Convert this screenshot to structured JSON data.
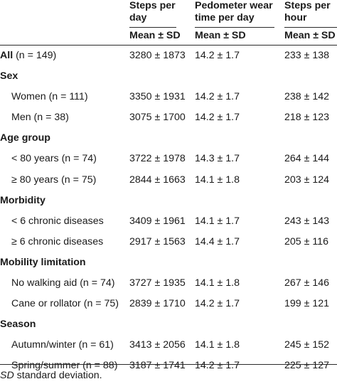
{
  "header": {
    "col1_title_line1": "Steps per",
    "col1_title_line2": "day",
    "col2_title_line1": "Pedometer wear",
    "col2_title_line2": "time per day",
    "col3_title_line1": "Steps per",
    "col3_title_line2": "hour",
    "col1_sub": "Mean ± SD",
    "col2_sub": "Mean ± SD",
    "col3_sub": "Mean ± SD"
  },
  "rows": [
    {
      "kind": "total",
      "label_bold": "All",
      "label_rest": " (n = 149)",
      "v1": "3280 ± 1873",
      "v2": "14.2 ± 1.7",
      "v3": "233 ± 138"
    },
    {
      "kind": "section",
      "label": "Sex"
    },
    {
      "kind": "item",
      "label": "Women (n = 111)",
      "v1": "3350 ± 1931",
      "v2": "14.2 ± 1.7",
      "v3": "238 ± 142"
    },
    {
      "kind": "item",
      "label": "Men (n = 38)",
      "v1": "3075 ± 1700",
      "v2": "14.2 ± 1.7",
      "v3": "218 ± 123"
    },
    {
      "kind": "section",
      "label": "Age group"
    },
    {
      "kind": "item",
      "label": "< 80 years (n = 74)",
      "v1": "3722 ± 1978",
      "v2": "14.3 ± 1.7",
      "v3": "264 ± 144"
    },
    {
      "kind": "item",
      "label": "≥ 80 years (n = 75)",
      "v1": "2844 ± 1663",
      "v2": "14.1 ± 1.8",
      "v3": "203 ± 124"
    },
    {
      "kind": "section",
      "label": "Morbidity"
    },
    {
      "kind": "item",
      "label": "< 6 chronic diseases",
      "v1": "3409 ± 1961",
      "v2": "14.1 ± 1.7",
      "v3": "243 ± 143"
    },
    {
      "kind": "item",
      "label": "≥ 6 chronic diseases",
      "v1": "2917 ± 1563",
      "v2": "14.4 ± 1.7",
      "v3": "205 ± 116"
    },
    {
      "kind": "section",
      "label": "Mobility limitation"
    },
    {
      "kind": "item",
      "label": "No walking aid (n = 74)",
      "v1": "3727 ± 1935",
      "v2": "14.1 ± 1.8",
      "v3": "267 ± 146"
    },
    {
      "kind": "item",
      "label": "Cane or rollator (n = 75)",
      "v1": "2839 ± 1710",
      "v2": "14.2 ± 1.7",
      "v3": "199 ± 121"
    },
    {
      "kind": "section",
      "label": "Season"
    },
    {
      "kind": "item",
      "label": "Autumn/winter (n = 61)",
      "v1": "3413 ± 2056",
      "v2": "14.1 ± 1.8",
      "v3": "245 ± 152"
    },
    {
      "kind": "item",
      "label": "Spring/summer (n = 88)",
      "v1": "3187 ± 1741",
      "v2": "14.2 ± 1.7",
      "v3": "225 ± 127"
    }
  ],
  "footnote": {
    "abbr": "SD",
    "text": " standard deviation."
  }
}
